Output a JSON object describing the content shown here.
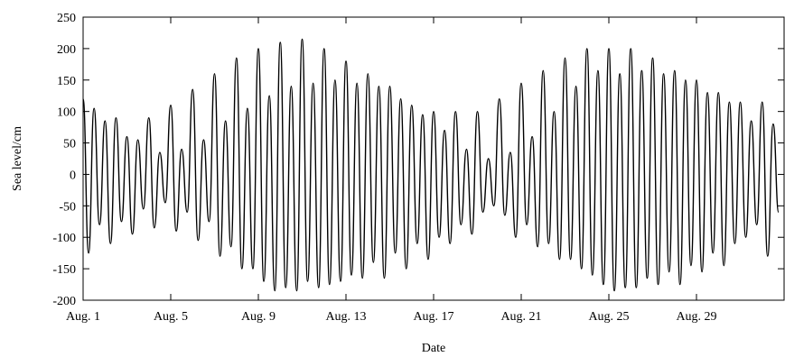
{
  "chart_data": {
    "type": "line",
    "title": "",
    "xlabel": "Date",
    "ylabel": "Sea level/cm",
    "xlim": [
      1,
      33
    ],
    "ylim": [
      -200,
      250
    ],
    "grid": false,
    "legend": "none",
    "line_color": "#000000",
    "y_ticks": [
      -200,
      -150,
      -100,
      -50,
      0,
      50,
      100,
      150,
      200,
      250
    ],
    "x_ticks": [
      {
        "day": 1,
        "label": "Aug. 1"
      },
      {
        "day": 5,
        "label": "Aug. 5"
      },
      {
        "day": 9,
        "label": "Aug. 9"
      },
      {
        "day": 13,
        "label": "Aug. 13"
      },
      {
        "day": 17,
        "label": "Aug. 17"
      },
      {
        "day": 21,
        "label": "Aug. 21"
      },
      {
        "day": 25,
        "label": "Aug. 25"
      },
      {
        "day": 29,
        "label": "Aug. 29"
      }
    ],
    "series": [
      {
        "x_unit": "day of August",
        "x": [
          1.0,
          1.25,
          1.5,
          1.75,
          2.0,
          2.25,
          2.5,
          2.75,
          3.0,
          3.25,
          3.5,
          3.75,
          4.0,
          4.25,
          4.5,
          4.75,
          5.0,
          5.25,
          5.5,
          5.75,
          6.0,
          6.25,
          6.5,
          6.75,
          7.0,
          7.25,
          7.5,
          7.75,
          8.0,
          8.25,
          8.5,
          8.75,
          9.0,
          9.25,
          9.5,
          9.75,
          10.0,
          10.25,
          10.5,
          10.75,
          11.0,
          11.25,
          11.5,
          11.75,
          12.0,
          12.25,
          12.5,
          12.75,
          13.0,
          13.25,
          13.5,
          13.75,
          14.0,
          14.25,
          14.5,
          14.75,
          15.0,
          15.25,
          15.5,
          15.75,
          16.0,
          16.25,
          16.5,
          16.75,
          17.0,
          17.25,
          17.5,
          17.75,
          18.0,
          18.25,
          18.5,
          18.75,
          19.0,
          19.25,
          19.5,
          19.75,
          20.0,
          20.25,
          20.5,
          20.75,
          21.0,
          21.25,
          21.5,
          21.75,
          22.0,
          22.25,
          22.5,
          22.75,
          23.0,
          23.25,
          23.5,
          23.75,
          24.0,
          24.25,
          24.5,
          24.75,
          25.0,
          25.25,
          25.5,
          25.75,
          26.0,
          26.25,
          26.5,
          26.75,
          27.0,
          27.25,
          27.5,
          27.75,
          28.0,
          28.25,
          28.5,
          28.75,
          29.0,
          29.25,
          29.5,
          29.75,
          30.0,
          30.25,
          30.5,
          30.75,
          31.0,
          31.25,
          31.5,
          31.75,
          32.0,
          32.25,
          32.5,
          32.75
        ],
        "y": [
          120,
          -125,
          105,
          -80,
          85,
          -110,
          90,
          -75,
          60,
          -95,
          55,
          -55,
          90,
          -85,
          35,
          -45,
          110,
          -90,
          40,
          -60,
          135,
          -105,
          55,
          -75,
          160,
          -130,
          85,
          -115,
          185,
          -150,
          105,
          -150,
          200,
          -170,
          125,
          -185,
          210,
          -180,
          140,
          -185,
          215,
          -170,
          145,
          -180,
          200,
          -175,
          150,
          -170,
          180,
          -160,
          145,
          -165,
          160,
          -140,
          140,
          -165,
          140,
          -125,
          120,
          -150,
          110,
          -110,
          95,
          -135,
          100,
          -100,
          70,
          -110,
          100,
          -80,
          40,
          -95,
          100,
          -60,
          25,
          -50,
          120,
          -65,
          35,
          -100,
          145,
          -80,
          60,
          -115,
          165,
          -110,
          100,
          -135,
          185,
          -135,
          140,
          -150,
          200,
          -160,
          165,
          -175,
          200,
          -185,
          160,
          -180,
          200,
          -180,
          165,
          -165,
          185,
          -175,
          160,
          -155,
          165,
          -175,
          150,
          -145,
          150,
          -155,
          130,
          -125,
          130,
          -145,
          115,
          -110,
          115,
          -100,
          85,
          -80,
          115,
          -130,
          80,
          -60
        ]
      }
    ]
  }
}
